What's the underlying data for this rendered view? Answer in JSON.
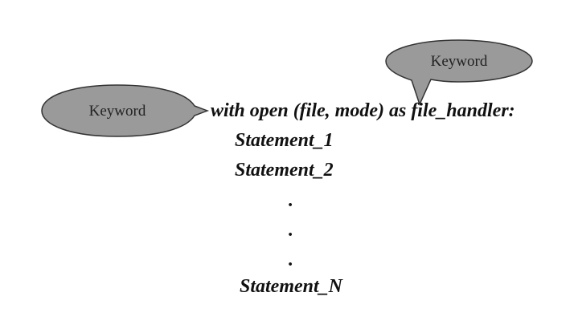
{
  "callouts": [
    {
      "label": "Keyword"
    },
    {
      "label": "Keyword"
    }
  ],
  "code": {
    "line_with": "with open (file, mode) as file_handler:",
    "statement_1": "Statement_1",
    "statement_2": "Statement_2",
    "dot_1": ".",
    "dot_2": ".",
    "dot_3": ".",
    "statement_n": "Statement_N"
  },
  "colors": {
    "bubble_fill": "#9a9a9a",
    "bubble_stroke": "#333333",
    "text": "#111111"
  }
}
